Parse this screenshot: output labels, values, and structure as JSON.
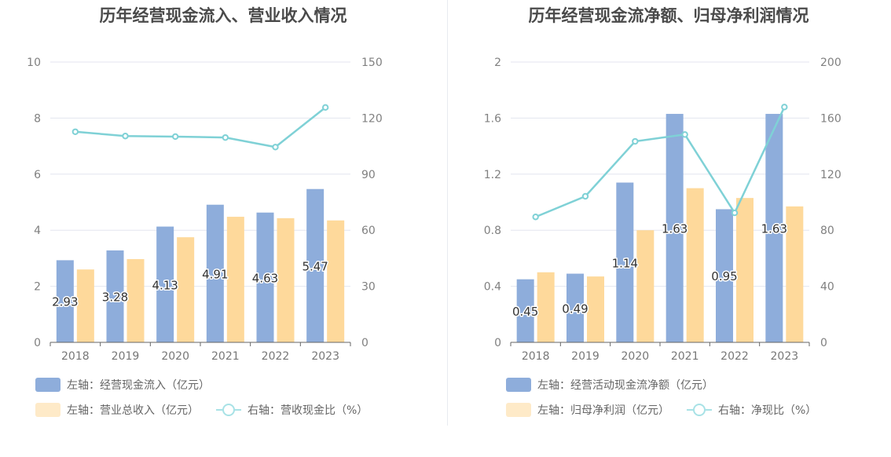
{
  "chart_data": [
    {
      "type": "bar",
      "title": "历年经营现金流入、营业收入情况",
      "categories": [
        "2018",
        "2019",
        "2020",
        "2021",
        "2022",
        "2023"
      ],
      "left_axis": {
        "ylim": [
          0,
          10
        ],
        "ticks": [
          "0",
          "2",
          "4",
          "6",
          "8",
          "10"
        ]
      },
      "right_axis": {
        "ylim": [
          0,
          150
        ],
        "ticks": [
          "0",
          "30",
          "60",
          "90",
          "120",
          "150"
        ]
      },
      "grid": true,
      "series": [
        {
          "name": "左轴：经营现金流入（亿元）",
          "type": "bar",
          "axis": "left",
          "color": "#8eaddb",
          "values": [
            2.93,
            3.28,
            4.13,
            4.91,
            4.63,
            5.47
          ],
          "labels": [
            "2.93",
            "3.28",
            "4.13",
            "4.91",
            "4.63",
            "5.47"
          ]
        },
        {
          "name": "左轴：营业总收入（亿元）",
          "type": "bar",
          "axis": "left",
          "color": "#fed99b",
          "values": [
            2.6,
            2.97,
            3.75,
            4.48,
            4.43,
            4.35
          ]
        },
        {
          "name": "右轴：营收现金比（%）",
          "type": "line",
          "axis": "right",
          "color": "#7fd1d6",
          "values": [
            112.7,
            110.4,
            110.1,
            109.6,
            104.5,
            125.7
          ]
        }
      ],
      "legend_position": "bottom-left"
    },
    {
      "type": "bar",
      "title": "历年经营现金流净额、归母净利润情况",
      "categories": [
        "2018",
        "2019",
        "2020",
        "2021",
        "2022",
        "2023"
      ],
      "left_axis": {
        "ylim": [
          0,
          2
        ],
        "ticks": [
          "0",
          "0.4",
          "0.8",
          "1.2",
          "1.6",
          "2"
        ]
      },
      "right_axis": {
        "ylim": [
          0,
          200
        ],
        "ticks": [
          "0",
          "40",
          "80",
          "120",
          "160",
          "200"
        ]
      },
      "grid": true,
      "series": [
        {
          "name": "左轴：经营活动现金流净额（亿元）",
          "type": "bar",
          "axis": "left",
          "color": "#8eaddb",
          "values": [
            0.45,
            0.49,
            1.14,
            1.63,
            0.95,
            1.63
          ],
          "labels": [
            "0.45",
            "0.49",
            "1.14",
            "1.63",
            "0.95",
            "1.63"
          ]
        },
        {
          "name": "左轴：归母净利润（亿元）",
          "type": "bar",
          "axis": "left",
          "color": "#fed99b",
          "values": [
            0.5,
            0.47,
            0.8,
            1.1,
            1.03,
            0.97
          ]
        },
        {
          "name": "右轴：净现比（%）",
          "type": "line",
          "axis": "right",
          "color": "#7fd1d6",
          "values": [
            89.5,
            104.2,
            143.4,
            148.3,
            92.4,
            167.9
          ]
        }
      ],
      "legend_position": "bottom-left"
    }
  ]
}
